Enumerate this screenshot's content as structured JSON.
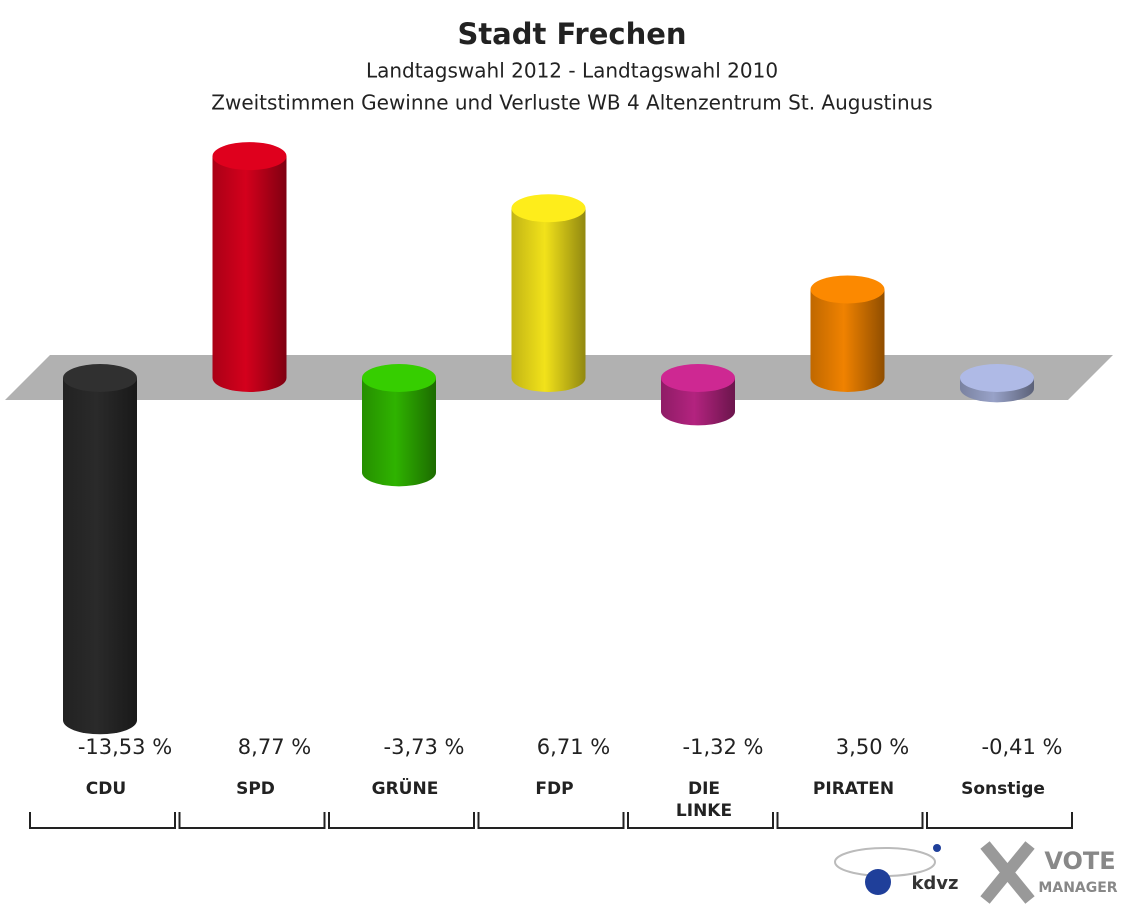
{
  "chart_data": {
    "type": "bar",
    "title": "Stadt Frechen",
    "subtitle": "Landtagswahl 2012 - Landtagswahl 2010",
    "subtitle2": "Zweitstimmen Gewinne und Verluste WB 4 Altenzentrum St. Augustinus",
    "categories": [
      "CDU",
      "SPD",
      "GRÜNE",
      "FDP",
      "DIE LINKE",
      "PIRATEN",
      "Sonstige"
    ],
    "values": [
      -13.53,
      8.77,
      -3.73,
      6.71,
      -1.32,
      3.5,
      -0.41
    ],
    "value_labels": [
      "-13,53 %",
      "8,77 %",
      "-3,73 %",
      "6,71 %",
      "-1,32 %",
      "3,50 %",
      "-0,41 %"
    ],
    "colors": [
      "#2a2a2a",
      "#d4001c",
      "#2fb300",
      "#f2e21a",
      "#b3237f",
      "#f08200",
      "#98a2c8"
    ],
    "logos": {
      "kdvz": "kdvz",
      "vote": "VOTE",
      "manager": "MANAGER"
    }
  }
}
